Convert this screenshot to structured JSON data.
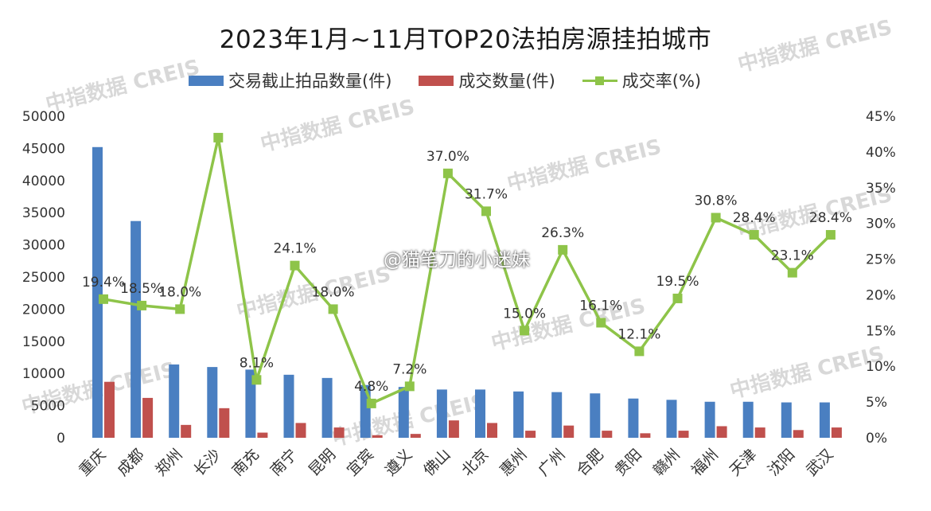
{
  "chart_data": {
    "type": "bar",
    "title": "2023年1月~11月TOP20法拍房源挂拍城市",
    "categories": [
      "重庆",
      "成都",
      "郑州",
      "长沙",
      "南充",
      "南宁",
      "昆明",
      "宜宾",
      "遵义",
      "佛山",
      "北京",
      "惠州",
      "广州",
      "合肥",
      "贵阳",
      "赣州",
      "福州",
      "天津",
      "沈阳",
      "武汉"
    ],
    "series": [
      {
        "name": "交易截止拍品数量(件)",
        "axis": "left",
        "type": "bar",
        "color": "#4a7fc1",
        "values": [
          45200,
          33700,
          11400,
          11000,
          10600,
          9800,
          9300,
          8200,
          7900,
          7500,
          7500,
          7200,
          7100,
          6900,
          6100,
          5900,
          5600,
          5600,
          5500,
          5500
        ]
      },
      {
        "name": "成交数量(件)",
        "axis": "left",
        "type": "bar",
        "color": "#c0504d",
        "values": [
          8700,
          6200,
          2000,
          4600,
          800,
          2300,
          1600,
          400,
          600,
          2700,
          2300,
          1100,
          1900,
          1100,
          700,
          1100,
          1800,
          1600,
          1200,
          1600
        ]
      },
      {
        "name": "成交率(%)",
        "axis": "right",
        "type": "line",
        "color": "#8ec449",
        "values": [
          19.4,
          18.5,
          18.0,
          42.0,
          8.1,
          24.1,
          18.0,
          4.8,
          7.2,
          37.0,
          31.7,
          15.0,
          26.3,
          16.1,
          12.1,
          19.5,
          30.8,
          28.4,
          23.1,
          28.4
        ]
      }
    ],
    "line_labels": [
      "19.4%",
      "18.5%",
      "18.0%",
      "",
      "8.1%",
      "24.1%",
      "18.0%",
      "4.8%",
      "7.2%",
      "37.0%",
      "31.7%",
      "15.0%",
      "26.3%",
      "16.1%",
      "12.1%",
      "19.5%",
      "30.8%",
      "28.4%",
      "23.1%",
      "28.4%"
    ],
    "ylim_left": [
      0,
      50000
    ],
    "yticks_left": [
      "0",
      "5000",
      "10000",
      "15000",
      "20000",
      "25000",
      "30000",
      "35000",
      "40000",
      "45000",
      "50000"
    ],
    "ylim_right": [
      0,
      45
    ],
    "yticks_right": [
      "0%",
      "5%",
      "10%",
      "15%",
      "20%",
      "25%",
      "30%",
      "35%",
      "40%",
      "45%"
    ],
    "legend_position": "top",
    "grid": false
  },
  "watermark": {
    "brand": "中指数据 CREIS",
    "weibo": "@猫笔刀的小迷妹"
  }
}
